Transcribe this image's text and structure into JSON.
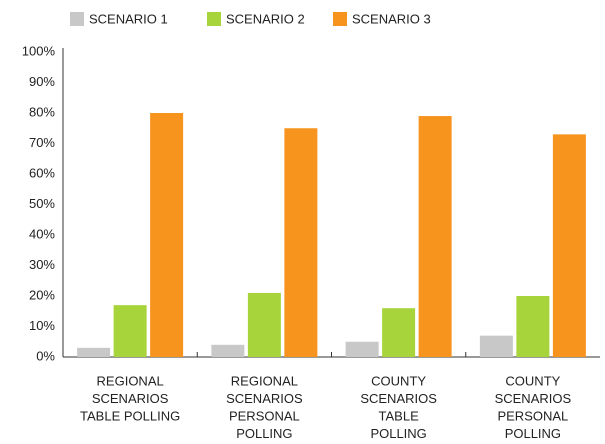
{
  "chart_data": {
    "type": "bar",
    "categories": [
      [
        "REGIONAL",
        "SCENARIOS",
        "TABLE POLLING"
      ],
      [
        "REGIONAL",
        "SCENARIOS",
        "PERSONAL",
        "POLLING"
      ],
      [
        "COUNTY",
        "SCENARIOS",
        "TABLE",
        "POLLING"
      ],
      [
        "COUNTY",
        "SCENARIOS",
        "PERSONAL",
        "POLLING"
      ]
    ],
    "series": [
      {
        "name": "SCENARIO 1",
        "color": "#c8c8c8",
        "values": [
          3,
          4,
          5,
          7
        ]
      },
      {
        "name": "SCENARIO 2",
        "color": "#a6d43a",
        "values": [
          17,
          21,
          16,
          20
        ]
      },
      {
        "name": "SCENARIO 3",
        "color": "#f7941d",
        "values": [
          80,
          75,
          79,
          73
        ]
      }
    ],
    "ylim": [
      0,
      100
    ],
    "yticks": [
      {
        "value": 0,
        "label": "0%"
      },
      {
        "value": 10,
        "label": "10%"
      },
      {
        "value": 20,
        "label": "20%"
      },
      {
        "value": 30,
        "label": "30%"
      },
      {
        "value": 40,
        "label": "40%"
      },
      {
        "value": 50,
        "label": "50%"
      },
      {
        "value": 60,
        "label": "60%"
      },
      {
        "value": 70,
        "label": "70%"
      },
      {
        "value": 80,
        "label": "80%"
      },
      {
        "value": 90,
        "label": "90%"
      },
      {
        "value": 100,
        "label": "100%"
      }
    ],
    "grid": false,
    "legend": "top"
  }
}
